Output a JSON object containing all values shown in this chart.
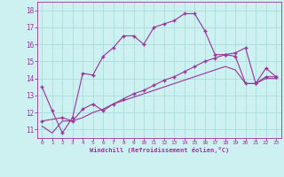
{
  "xlabel": "Windchill (Refroidissement éolien,°C)",
  "bg_color": "#cdf0f0",
  "line_color": "#993399",
  "grid_color": "#aadddd",
  "x_ticks": [
    0,
    1,
    2,
    3,
    4,
    5,
    6,
    7,
    8,
    9,
    10,
    11,
    12,
    13,
    14,
    15,
    16,
    17,
    18,
    19,
    20,
    21,
    22,
    23
  ],
  "y_ticks": [
    11,
    12,
    13,
    14,
    15,
    16,
    17,
    18
  ],
  "ylim": [
    10.5,
    18.5
  ],
  "xlim": [
    -0.5,
    23.5
  ],
  "series1_x": [
    0,
    1,
    2,
    3,
    4,
    5,
    6,
    7,
    8,
    9,
    10,
    11,
    12,
    13,
    14,
    15,
    16,
    17,
    18,
    19,
    20,
    21,
    22,
    23
  ],
  "series1_y": [
    13.5,
    12.1,
    10.8,
    11.7,
    14.3,
    14.2,
    15.3,
    15.8,
    16.5,
    16.5,
    16.0,
    17.0,
    17.2,
    17.4,
    17.8,
    17.8,
    16.8,
    15.4,
    15.4,
    15.5,
    15.8,
    13.7,
    14.6,
    14.1
  ],
  "series2_x": [
    0,
    2,
    3,
    4,
    5,
    6,
    7,
    8,
    9,
    10,
    11,
    12,
    13,
    14,
    15,
    16,
    17,
    18,
    19,
    20,
    21,
    22,
    23
  ],
  "series2_y": [
    11.5,
    11.7,
    11.5,
    12.2,
    12.5,
    12.1,
    12.5,
    12.8,
    13.1,
    13.3,
    13.6,
    13.9,
    14.1,
    14.4,
    14.7,
    15.0,
    15.2,
    15.4,
    15.3,
    13.7,
    13.7,
    14.1,
    14.1
  ],
  "series3_x": [
    0,
    1,
    2,
    3,
    4,
    5,
    6,
    7,
    8,
    9,
    10,
    11,
    12,
    13,
    14,
    15,
    16,
    17,
    18,
    19,
    20,
    21,
    22,
    23
  ],
  "series3_y": [
    11.2,
    10.8,
    11.5,
    11.5,
    11.7,
    12.0,
    12.2,
    12.5,
    12.7,
    12.9,
    13.1,
    13.3,
    13.5,
    13.7,
    13.9,
    14.1,
    14.3,
    14.5,
    14.7,
    14.5,
    13.7,
    13.7,
    14.0,
    14.0
  ]
}
